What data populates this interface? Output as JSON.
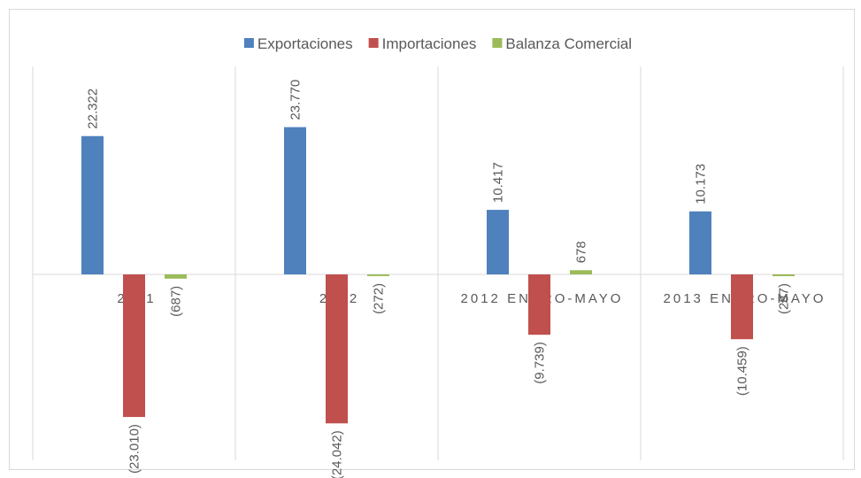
{
  "chart_data": {
    "type": "bar",
    "categories": [
      "2011",
      "2012",
      "2012 ENERO-MAYO",
      "2013 ENERO-MAYO"
    ],
    "series": [
      {
        "name": "Exportaciones",
        "color": "#4f81bd",
        "values": [
          22322,
          23770,
          10417,
          10173
        ],
        "value_labels": [
          "22.322",
          "23.770",
          "10.417",
          "10.173"
        ]
      },
      {
        "name": "Importaciones",
        "color": "#c0504d",
        "values": [
          -23010,
          -24042,
          -9739,
          -10459
        ],
        "value_labels": [
          "(23.010)",
          "(24.042)",
          "(9.739)",
          "(10.459)"
        ]
      },
      {
        "name": "Balanza Comercial",
        "color": "#9bbb59",
        "values": [
          -687,
          -272,
          678,
          -287
        ],
        "value_labels": [
          "(687)",
          "(272)",
          "678",
          "(287)"
        ]
      }
    ],
    "ylim": [
      -30000,
      40000
    ],
    "legend": "top"
  }
}
